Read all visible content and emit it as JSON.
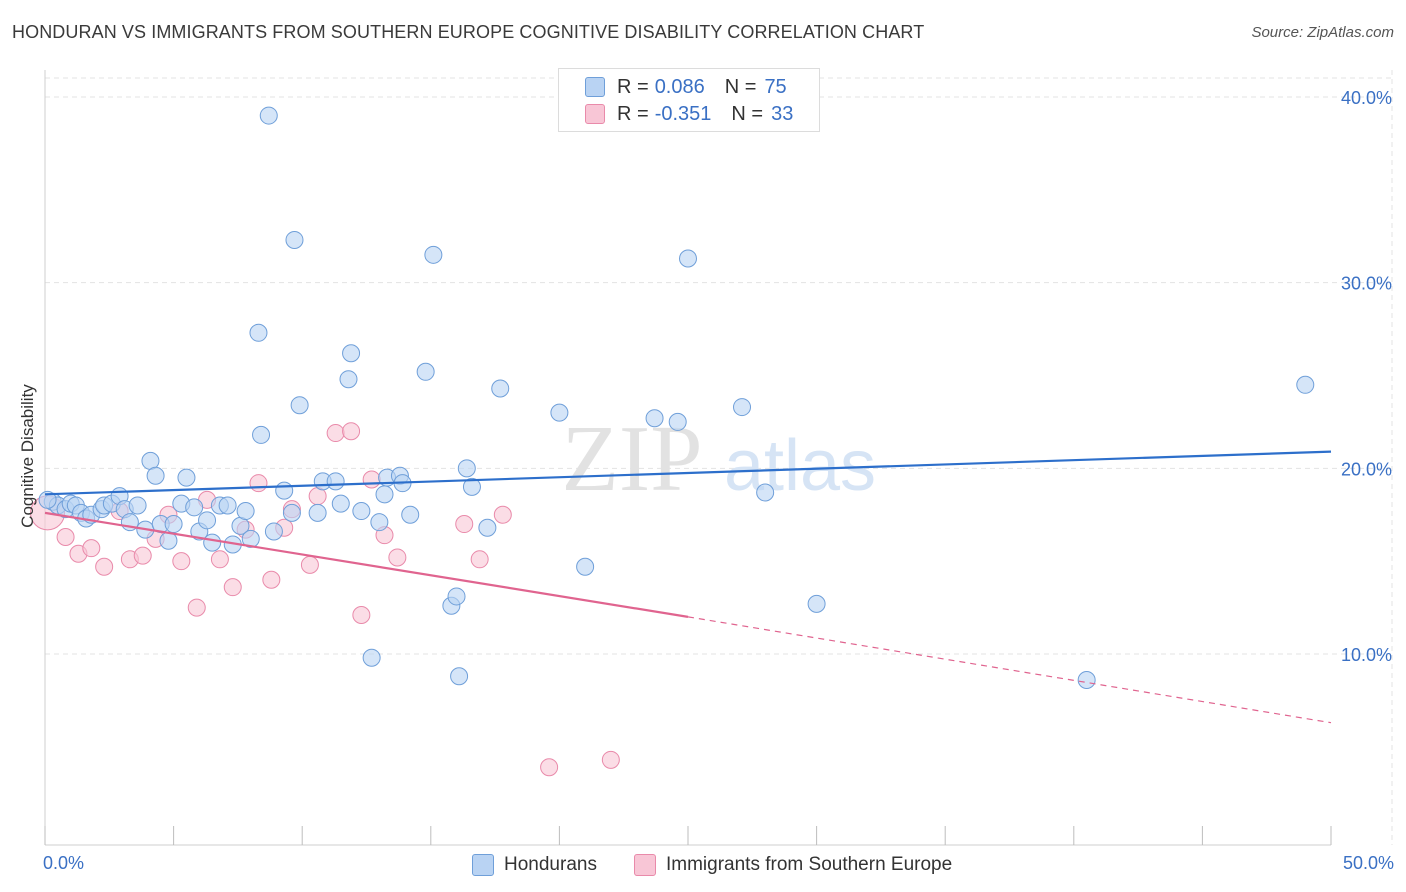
{
  "title": "HONDURAN VS IMMIGRANTS FROM SOUTHERN EUROPE COGNITIVE DISABILITY CORRELATION CHART",
  "source": "Source: ZipAtlas.com",
  "watermark": {
    "zip": "ZIP",
    "atlas": "atlas"
  },
  "colors": {
    "blue_fill": "#b9d3f3",
    "blue_stroke": "#6f9fd9",
    "blue_line": "#2d6fcb",
    "pink_fill": "#f8c6d6",
    "pink_stroke": "#e98aaa",
    "pink_line": "#e0648f",
    "tick_label": "#3a70c4",
    "grid": "#e3e3e3"
  },
  "legend": {
    "rows": [
      {
        "r_label": "R =",
        "r_value": "0.086",
        "n_label": "N =",
        "n_value": "75"
      },
      {
        "r_label": "R =",
        "r_value": "-0.351",
        "n_label": "N =",
        "n_value": "33"
      }
    ]
  },
  "bottom_legend": [
    "Hondurans",
    "Immigrants from Southern Europe"
  ],
  "chart_data": {
    "type": "scatter",
    "title": "HONDURAN VS IMMIGRANTS FROM SOUTHERN EUROPE COGNITIVE DISABILITY CORRELATION CHART",
    "xlabel": "",
    "ylabel": "Cognitive Disability",
    "xlim": [
      0,
      50
    ],
    "ylim": [
      0,
      42
    ],
    "x_tick_labels": [
      "0.0%",
      "50.0%"
    ],
    "y_ticks": [
      10,
      20,
      30,
      40
    ],
    "y_tick_labels": [
      "10.0%",
      "20.0%",
      "30.0%",
      "40.0%"
    ],
    "grid": true,
    "series": [
      {
        "name": "Hondurans",
        "r": 0.086,
        "n": 75,
        "trend": {
          "x0": 0,
          "y0": 18.6,
          "x1": 50,
          "y1": 20.9
        },
        "points": [
          [
            0.3,
            18.2
          ],
          [
            0.5,
            18.0
          ],
          [
            0.8,
            17.8
          ],
          [
            1.0,
            18.1
          ],
          [
            1.2,
            18.0
          ],
          [
            1.4,
            17.6
          ],
          [
            1.6,
            17.3
          ],
          [
            1.8,
            17.5
          ],
          [
            2.2,
            17.8
          ],
          [
            2.3,
            18.0
          ],
          [
            2.6,
            18.1
          ],
          [
            2.9,
            18.5
          ],
          [
            3.1,
            17.8
          ],
          [
            3.3,
            17.1
          ],
          [
            3.6,
            18.0
          ],
          [
            3.9,
            16.7
          ],
          [
            4.1,
            20.4
          ],
          [
            4.3,
            19.6
          ],
          [
            4.5,
            17.0
          ],
          [
            4.8,
            16.1
          ],
          [
            5.0,
            17.0
          ],
          [
            5.3,
            18.1
          ],
          [
            5.5,
            19.5
          ],
          [
            5.8,
            17.9
          ],
          [
            6.0,
            16.6
          ],
          [
            6.3,
            17.2
          ],
          [
            6.5,
            16.0
          ],
          [
            6.8,
            18.0
          ],
          [
            7.1,
            18.0
          ],
          [
            7.3,
            15.9
          ],
          [
            7.6,
            16.9
          ],
          [
            7.8,
            17.7
          ],
          [
            8.0,
            16.2
          ],
          [
            8.3,
            27.3
          ],
          [
            8.4,
            21.8
          ],
          [
            8.7,
            39.0
          ],
          [
            8.9,
            16.6
          ],
          [
            9.3,
            18.8
          ],
          [
            9.6,
            17.6
          ],
          [
            9.7,
            32.3
          ],
          [
            9.9,
            23.4
          ],
          [
            10.6,
            17.6
          ],
          [
            10.8,
            19.3
          ],
          [
            11.3,
            19.3
          ],
          [
            11.5,
            18.1
          ],
          [
            11.8,
            24.8
          ],
          [
            11.9,
            26.2
          ],
          [
            12.3,
            17.7
          ],
          [
            12.7,
            9.8
          ],
          [
            13.0,
            17.1
          ],
          [
            13.2,
            18.6
          ],
          [
            13.3,
            19.5
          ],
          [
            13.8,
            19.6
          ],
          [
            13.9,
            19.2
          ],
          [
            14.2,
            17.5
          ],
          [
            14.8,
            25.2
          ],
          [
            15.1,
            31.5
          ],
          [
            15.8,
            12.6
          ],
          [
            16.0,
            13.1
          ],
          [
            16.1,
            8.8
          ],
          [
            16.4,
            20.0
          ],
          [
            16.6,
            19.0
          ],
          [
            17.2,
            16.8
          ],
          [
            17.7,
            24.3
          ],
          [
            20.0,
            23.0
          ],
          [
            21.0,
            14.7
          ],
          [
            23.7,
            22.7
          ],
          [
            24.6,
            22.5
          ],
          [
            25.0,
            31.3
          ],
          [
            27.1,
            23.3
          ],
          [
            28.0,
            18.7
          ],
          [
            30.0,
            12.7
          ],
          [
            40.5,
            8.6
          ],
          [
            49.0,
            24.5
          ],
          [
            0.1,
            18.3
          ]
        ]
      },
      {
        "name": "Immigrants from Southern Europe",
        "r": -0.351,
        "n": 33,
        "trend": {
          "x0": 0,
          "y0": 17.6,
          "x1": 25,
          "y1": 12.0,
          "dash_x1": 50,
          "dash_y1": 6.3
        },
        "points": [
          [
            0.1,
            17.6
          ],
          [
            0.8,
            16.3
          ],
          [
            1.3,
            15.4
          ],
          [
            1.8,
            15.7
          ],
          [
            2.3,
            14.7
          ],
          [
            2.9,
            17.7
          ],
          [
            3.3,
            15.1
          ],
          [
            3.8,
            15.3
          ],
          [
            4.3,
            16.2
          ],
          [
            4.8,
            17.5
          ],
          [
            5.3,
            15.0
          ],
          [
            5.9,
            12.5
          ],
          [
            6.3,
            18.3
          ],
          [
            6.8,
            15.1
          ],
          [
            7.3,
            13.6
          ],
          [
            7.8,
            16.7
          ],
          [
            8.3,
            19.2
          ],
          [
            8.8,
            14.0
          ],
          [
            9.3,
            16.8
          ],
          [
            9.6,
            17.8
          ],
          [
            10.3,
            14.8
          ],
          [
            10.6,
            18.5
          ],
          [
            11.3,
            21.9
          ],
          [
            11.9,
            22.0
          ],
          [
            12.3,
            12.1
          ],
          [
            12.7,
            19.4
          ],
          [
            13.2,
            16.4
          ],
          [
            13.7,
            15.2
          ],
          [
            16.3,
            17.0
          ],
          [
            16.9,
            15.1
          ],
          [
            17.8,
            17.5
          ],
          [
            19.6,
            3.9
          ],
          [
            22.0,
            4.3
          ]
        ]
      }
    ]
  }
}
